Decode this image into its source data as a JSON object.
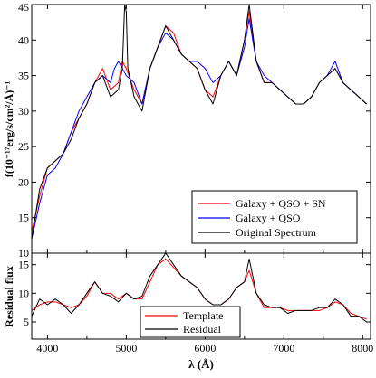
{
  "chart_data": [
    {
      "type": "line",
      "ylabel": "f(10⁻¹⁷erg/s/cm²/Å)⁻¹",
      "xlim": [
        3800,
        8100
      ],
      "ylim": [
        10,
        45
      ],
      "yticks": [
        10,
        15,
        20,
        25,
        30,
        35,
        40,
        45
      ],
      "grid": false,
      "legend_placement": "bottom-right",
      "series": [
        {
          "name": "Galaxy + QSO + SN",
          "color": "#ff0000",
          "x": [
            3800,
            3900,
            4000,
            4100,
            4200,
            4300,
            4400,
            4500,
            4600,
            4700,
            4800,
            4900,
            4950,
            5000,
            5100,
            5200,
            5300,
            5400,
            5500,
            5600,
            5700,
            5800,
            5900,
            6000,
            6100,
            6200,
            6300,
            6400,
            6500,
            6560,
            6650,
            6750,
            6850,
            6950,
            7050,
            7150,
            7250,
            7350,
            7450,
            7550,
            7650,
            7750,
            7850,
            7950,
            8050
          ],
          "y": [
            13,
            18,
            22,
            23,
            24,
            27,
            29,
            31,
            34,
            36,
            33,
            34,
            37,
            36,
            33,
            31,
            36,
            39,
            42,
            41,
            38,
            37,
            36,
            33,
            32,
            35,
            37,
            35,
            40,
            44,
            37,
            34,
            34,
            33,
            32,
            31,
            31,
            32,
            34,
            35,
            36,
            34,
            33,
            32,
            31
          ]
        },
        {
          "name": "Galaxy + QSO",
          "color": "#0000ff",
          "x": [
            3800,
            3900,
            4000,
            4100,
            4200,
            4300,
            4400,
            4500,
            4600,
            4700,
            4800,
            4850,
            4900,
            5000,
            5100,
            5200,
            5300,
            5400,
            5500,
            5600,
            5700,
            5800,
            5900,
            6000,
            6100,
            6200,
            6300,
            6400,
            6500,
            6560,
            6650,
            6750,
            6850,
            6950,
            7050,
            7150,
            7250,
            7350,
            7450,
            7550,
            7650,
            7750,
            7850,
            7950,
            8050
          ],
          "y": [
            12,
            17,
            21,
            22,
            24,
            27,
            30,
            32,
            34,
            35,
            34,
            36,
            37,
            35,
            34,
            31,
            36,
            39,
            41,
            40,
            38,
            37,
            37,
            36,
            34,
            35,
            37,
            35,
            39,
            43,
            37,
            35,
            34,
            33,
            32,
            31,
            31,
            32,
            34,
            35,
            37,
            34,
            33,
            32,
            31
          ]
        },
        {
          "name": "Original Spectrum",
          "color": "#000000",
          "x": [
            3800,
            3900,
            4000,
            4100,
            4200,
            4300,
            4400,
            4500,
            4600,
            4700,
            4800,
            4900,
            4950,
            4980,
            5000,
            5020,
            5100,
            5200,
            5300,
            5400,
            5500,
            5600,
            5700,
            5800,
            5900,
            6000,
            6100,
            6200,
            6300,
            6400,
            6500,
            6560,
            6650,
            6750,
            6850,
            6950,
            7050,
            7150,
            7250,
            7350,
            7450,
            7550,
            7650,
            7750,
            7850,
            7950,
            8050
          ],
          "y": [
            12,
            19,
            22,
            23,
            24,
            26,
            29,
            31,
            34,
            35,
            32,
            33,
            36,
            45,
            44,
            36,
            32,
            30,
            36,
            39,
            42,
            40,
            38,
            37,
            36,
            33,
            31,
            35,
            37,
            35,
            40,
            45,
            37,
            34,
            34,
            33,
            32,
            31,
            31,
            32,
            34,
            35,
            36,
            34,
            33,
            32,
            31
          ]
        }
      ]
    },
    {
      "type": "line",
      "ylabel": "Residual flux",
      "xlabel": "λ (Å)",
      "xlim": [
        3800,
        8100
      ],
      "ylim": [
        2,
        17
      ],
      "xticks": [
        4000,
        5000,
        6000,
        7000,
        8000
      ],
      "yticks": [
        5,
        10,
        15
      ],
      "grid": false,
      "legend_placement": "bottom-center",
      "series": [
        {
          "name": "Template",
          "color": "#ff0000",
          "x": [
            3800,
            3900,
            4000,
            4100,
            4200,
            4300,
            4400,
            4500,
            4600,
            4700,
            4800,
            4900,
            5000,
            5100,
            5200,
            5300,
            5400,
            5500,
            5600,
            5700,
            5800,
            5900,
            6000,
            6100,
            6200,
            6300,
            6400,
            6500,
            6560,
            6650,
            6750,
            6850,
            6950,
            7050,
            7150,
            7250,
            7350,
            7450,
            7550,
            7650,
            7750,
            7850,
            7950,
            8050
          ],
          "y": [
            7,
            8,
            8.5,
            8.5,
            8,
            7.5,
            8,
            9.5,
            12,
            10,
            10,
            9,
            10,
            9,
            9,
            12,
            15,
            16,
            14.5,
            13,
            12,
            11,
            9,
            8,
            8,
            9,
            11,
            12,
            14,
            10,
            7.5,
            7.5,
            7.5,
            7,
            7,
            7,
            7,
            7,
            7.5,
            8.5,
            8,
            6.5,
            6,
            5.5
          ]
        },
        {
          "name": "Residual",
          "color": "#000000",
          "x": [
            3800,
            3900,
            4000,
            4100,
            4200,
            4300,
            4400,
            4500,
            4600,
            4700,
            4800,
            4900,
            5000,
            5100,
            5200,
            5300,
            5400,
            5500,
            5600,
            5700,
            5800,
            5900,
            6000,
            6100,
            6200,
            6300,
            6400,
            6500,
            6560,
            6650,
            6750,
            6850,
            6950,
            7050,
            7150,
            7250,
            7350,
            7450,
            7550,
            7650,
            7750,
            7850,
            7950,
            8050
          ],
          "y": [
            6,
            9,
            8,
            9,
            8,
            6.5,
            8,
            10,
            12,
            10,
            9.5,
            8.5,
            10,
            9,
            9.5,
            13,
            15,
            17,
            15,
            13,
            12,
            11,
            9,
            8,
            8,
            9,
            11,
            12,
            16,
            10,
            8,
            7.5,
            7.5,
            6.5,
            7,
            7,
            7,
            7.5,
            7.5,
            9,
            8,
            6,
            6,
            5
          ]
        }
      ]
    }
  ]
}
